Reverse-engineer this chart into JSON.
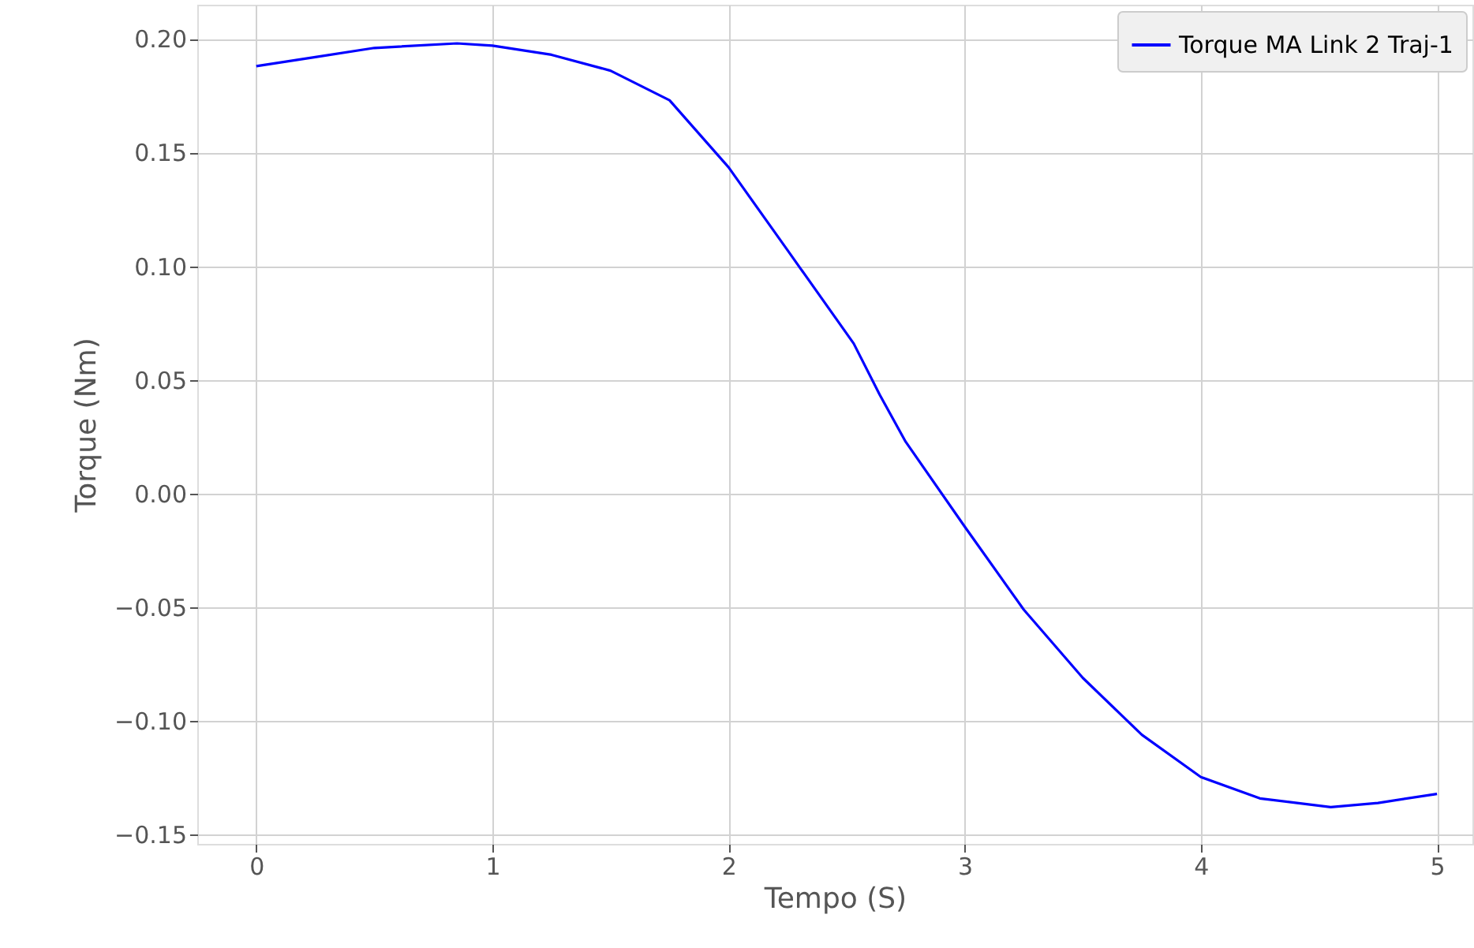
{
  "chart_data": {
    "type": "line",
    "xlabel": "Tempo (S)",
    "ylabel": "Torque (Nm)",
    "x": [
      0,
      0.25,
      0.5,
      0.85,
      1,
      1.25,
      1.5,
      1.75,
      2,
      2.25,
      2.53,
      2.64,
      2.75,
      3,
      3.25,
      3.5,
      3.75,
      4,
      4.25,
      4.55,
      4.75,
      5
    ],
    "series": [
      {
        "name": "Torque MA Link 2 Traj-1",
        "color": "#0000ff",
        "values": [
          0.188,
          0.192,
          0.196,
          0.198,
          0.197,
          0.193,
          0.186,
          0.173,
          0.1435,
          0.107,
          0.066,
          0.0435,
          0.0228,
          -0.0145,
          -0.051,
          -0.081,
          -0.106,
          -0.1246,
          -0.134,
          -0.1378,
          -0.136,
          -0.132
        ]
      }
    ],
    "xlim": [
      -0.25,
      5.15
    ],
    "xticks": [
      0,
      1,
      2,
      3,
      4,
      5
    ],
    "ylim": [
      -0.154,
      0.215
    ],
    "yticks": [
      {
        "value": 0.2,
        "label": "0.20"
      },
      {
        "value": 0.15,
        "label": "0.15"
      },
      {
        "value": 0.1,
        "label": "0.10"
      },
      {
        "value": 0.05,
        "label": "0.05"
      },
      {
        "value": 0,
        "label": "0.00"
      },
      {
        "value": -0.05,
        "label": "−0.05"
      },
      {
        "value": -0.1,
        "label": "−0.10"
      },
      {
        "value": -0.15,
        "label": "−0.15"
      }
    ],
    "grid": true,
    "legend": "top right",
    "line_style": "solid",
    "marker": "none"
  }
}
